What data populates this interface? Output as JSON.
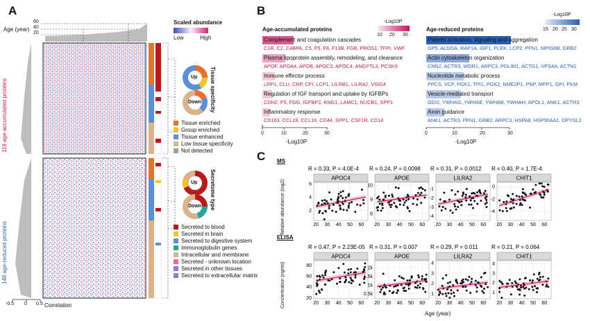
{
  "panel_a": {
    "letter": "A",
    "age_label": "Age (year)",
    "age_ticks": [
      "60",
      "40",
      "20"
    ],
    "scale_title": "Scaled abundance",
    "scale_low": "Low",
    "scale_high": "High",
    "left_label_top": "119 age-accumulated proteins",
    "left_label_bottom": "148 age-reduced proteins",
    "bottom_ticks": [
      "-0.5",
      "0",
      "0.5"
    ],
    "bottom_label": "Correlation",
    "tissue_title": "Tissue specificity",
    "secretome_title": "Secretome type",
    "donut_up": "Up",
    "donut_down": "Down",
    "tissue_legend": [
      {
        "label": "Tissue enriched",
        "color": "#e8702a"
      },
      {
        "label": "Group enriched",
        "color": "#f4c430"
      },
      {
        "label": "Tissue enhanced",
        "color": "#5b8fd6"
      },
      {
        "label": "Low tissue specificity",
        "color": "#d9b38c"
      },
      {
        "label": "Not detected",
        "color": "#9e9e9e"
      }
    ],
    "secretome_legend": [
      {
        "label": "Secreted to blood",
        "color": "#b71c1c"
      },
      {
        "label": "Secreted in brain",
        "color": "#f4c430"
      },
      {
        "label": "Secreted to digestive system",
        "color": "#5b8fd6"
      },
      {
        "label": "Immunoglobulin genes",
        "color": "#26a69a"
      },
      {
        "label": "Intracellular and membrane",
        "color": "#d9b38c"
      },
      {
        "label": "Secreted - unknown location",
        "color": "#ef6c8a"
      },
      {
        "label": "Secreted in other tissues",
        "color": "#9575cd"
      },
      {
        "label": "Secreted to extracellular matrix",
        "color": "#7986cb"
      }
    ]
  },
  "panel_b": {
    "letter": "B",
    "left_title": "Age-accumulated proteins",
    "right_title": "Age-reduced proteins",
    "left_legend_title": "-Log10P",
    "left_legend_ticks": [
      "10",
      "20",
      "30"
    ],
    "right_legend_title": "-Log10P",
    "right_legend_ticks": [
      "15",
      "20",
      "25",
      "30"
    ],
    "axis_label": "-Log10P",
    "axis_ticks": [
      "0",
      "10",
      "20",
      "30"
    ],
    "left_terms": [
      {
        "term": "Complement and coagulation cascades",
        "value": 14,
        "genes": "C1R, C2, C4BPA, C5, F5, F8, F13B, FGB, PROS1, TFPI, VWF"
      },
      {
        "term": "Plasma lipoprotein assembly, remodeling, and clearance",
        "value": 10,
        "genes": "APOF, APOA4, APOB, APOC3, APOC4, ANGPTL3, PCSK9"
      },
      {
        "term": "Immune effector process",
        "value": 5,
        "genes": "LRP1, CLU, CRP, CFI, LCP1, LILRB1, LILRA2, VSIG4"
      },
      {
        "term": "Regulation of IGF transport and uptake by IGFBPs",
        "value": 4,
        "genes": "CDH2, F5, FGG, IGFBP2, KNG1, LAMC1, NUCB1, SPP1"
      },
      {
        "term": "Inflammatory response",
        "value": 3,
        "genes": "CD163, CCL18, CCL16, CD44, SPP1, CSF1R, CD14"
      }
    ],
    "right_terms": [
      {
        "term": "Platelet activation, signaling and aggregation",
        "value": 30,
        "genes": "GP5, ALDOA, RAP1A, IGF1, PLEK, LCP2, PFN1, MPIG6B, GRB2"
      },
      {
        "term": "Actin cytoskeleton organization",
        "value": 15,
        "genes": "CNN2, ACTR3, WDR1, ARPC3, PDLIM1, ACTG1, VPS4A, ACTN1"
      },
      {
        "term": "Nucleotide metabolic process",
        "value": 13,
        "genes": "PPCS, VCP, PGK1, TPI1, PGK2, NME2P1, PNP, MPP1, GPI, PKM"
      },
      {
        "term": "Vesicle-mediated transport",
        "value": 12,
        "genes": "GDI2, YWHAG, YWHAE, YWHAB, YWHAH, APOL1, ANK1, ACTR3"
      },
      {
        "term": "Axon guidance",
        "value": 6,
        "genes": "ANK1, ACTR3, PFN1, GRB2, ARPC3, HSPA8, HSP90AA1, DPYSL2"
      }
    ]
  },
  "panel_c": {
    "letter": "C",
    "ms_label": "MS",
    "elisa_label": "ELISA",
    "ms_ylabel": "Relative abundance (log2)",
    "elisa_ylabel": "Concentration (ng/ml)",
    "xlabel": "Age (year)",
    "x_ticks": [
      "20",
      "30",
      "40",
      "50",
      "60"
    ]
  },
  "chart_data": [
    {
      "type": "scatter",
      "name": "APOC4",
      "row": "MS",
      "stats": "R = 0.33, P = 4.0E-4",
      "xlim": [
        18,
        66
      ],
      "ylim": [
        0.5,
        6.2
      ],
      "y_ticks": [
        "2",
        "4",
        "6"
      ],
      "y_tick_values": [
        2,
        4,
        6
      ],
      "trend": {
        "slope": 0.033,
        "intercept": 1.9
      }
    },
    {
      "type": "scatter",
      "name": "APOE",
      "row": "MS",
      "stats": "R = 0.24, P = 0.0098",
      "xlim": [
        18,
        66
      ],
      "ylim": [
        7.5,
        10.2
      ],
      "y_ticks": [
        "8",
        "9",
        "10"
      ],
      "y_tick_values": [
        8,
        9,
        10
      ],
      "trend": {
        "slope": 0.011,
        "intercept": 8.6
      }
    },
    {
      "type": "scatter",
      "name": "LILRA2",
      "row": "MS",
      "stats": "R = 0.31, P = 0.0012",
      "xlim": [
        18,
        66
      ],
      "ylim": [
        -4.5,
        -0.3
      ],
      "y_ticks": [
        "-1",
        "-2",
        "-3",
        "-4"
      ],
      "y_tick_values": [
        -1,
        -2,
        -3,
        -4
      ],
      "trend": {
        "slope": 0.025,
        "intercept": -3.2
      }
    },
    {
      "type": "scatter",
      "name": "CHIT1",
      "row": "MS",
      "stats": "R = 0.40, P = 1.7E-4",
      "xlim": [
        18,
        66
      ],
      "ylim": [
        -5.5,
        0.7
      ],
      "y_ticks": [
        "0",
        "-2",
        "-4"
      ],
      "y_tick_values": [
        0,
        -2,
        -4
      ],
      "trend": {
        "slope": 0.06,
        "intercept": -4.3
      }
    },
    {
      "type": "scatter",
      "name": "APOC4",
      "row": "ELISA",
      "stats": "R = 0.47, P = 2.23E-05",
      "xlim": [
        18,
        66
      ],
      "ylim": [
        18,
        88
      ],
      "y_ticks": [
        "80",
        "60",
        "40",
        "20"
      ],
      "y_tick_values": [
        80,
        60,
        40,
        20
      ],
      "trend": {
        "slope": 0.35,
        "intercept": 44
      }
    },
    {
      "type": "scatter",
      "name": "APOE",
      "row": "ELISA",
      "stats": "R = 0.31, P = 0.007",
      "xlim": [
        18,
        66
      ],
      "ylim": [
        200,
        2400
      ],
      "y_ticks": [
        "2k",
        "1.5k",
        "1k",
        "0.5k"
      ],
      "y_tick_values": [
        2000,
        1500,
        1000,
        500
      ],
      "trend": {
        "slope": 8,
        "intercept": 750
      }
    },
    {
      "type": "scatter",
      "name": "LILRA2",
      "row": "ELISA",
      "stats": "R = 0.29, P = 0.011",
      "xlim": [
        18,
        66
      ],
      "ylim": [
        0.5,
        4.2
      ],
      "y_ticks": [
        "4",
        "3",
        "2",
        "1"
      ],
      "y_tick_values": [
        4,
        3,
        2,
        1
      ],
      "trend": {
        "slope": 0.014,
        "intercept": 1.2
      }
    },
    {
      "type": "scatter",
      "name": "CHIT1",
      "row": "ELISA",
      "stats": "R = 0.21, P = 0.064",
      "xlim": [
        18,
        66
      ],
      "ylim": [
        0.3,
        4.3
      ],
      "y_ticks": [
        "4",
        "3",
        "2",
        "1"
      ],
      "y_tick_values": [
        4,
        3,
        2,
        1
      ],
      "trend": {
        "slope": 0.015,
        "intercept": 1.2
      }
    }
  ]
}
